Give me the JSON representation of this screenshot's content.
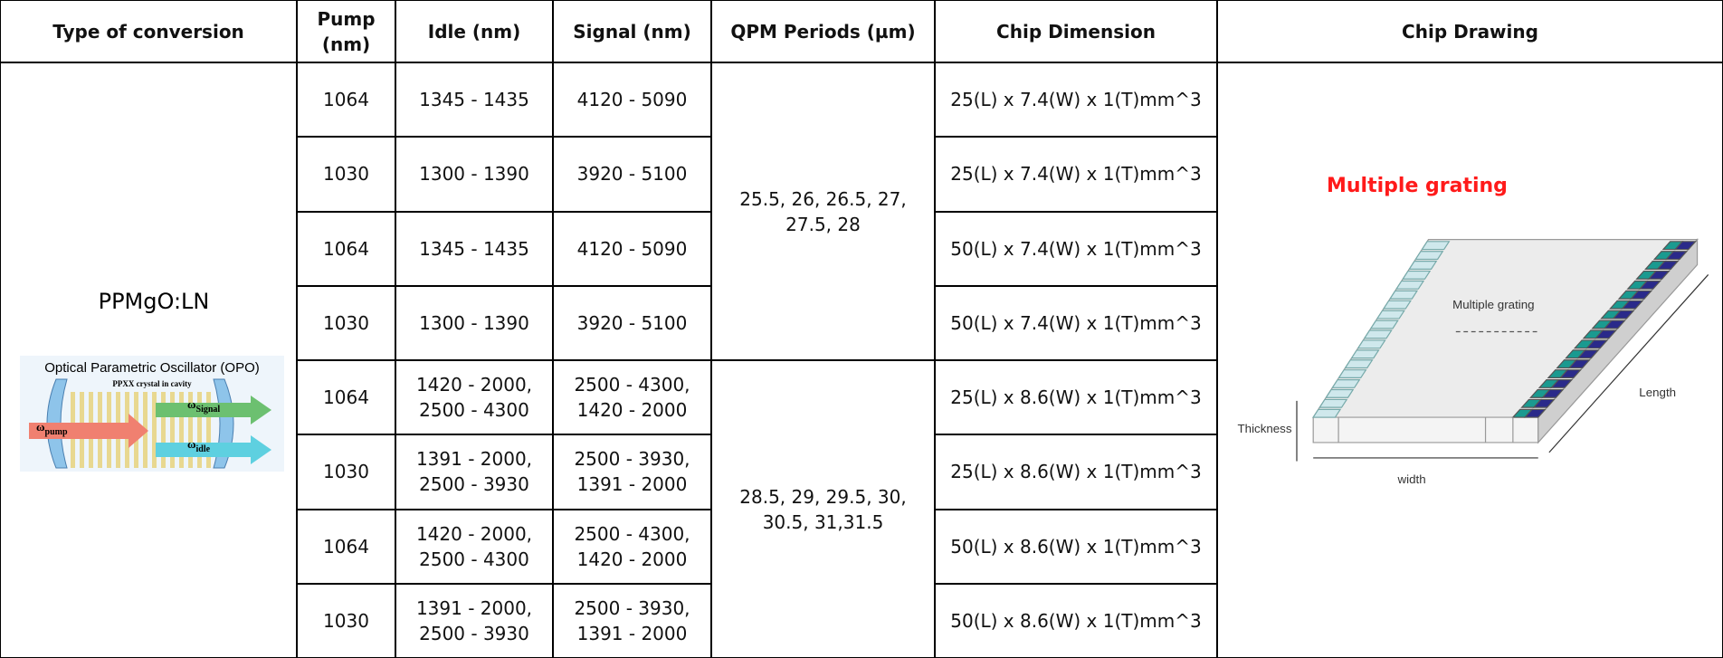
{
  "header": {
    "columns": [
      "Type of conversion",
      "Pump (nm)",
      "Idle (nm)",
      "Signal (nm)",
      "QPM Periods (µm)",
      "Chip Dimension",
      "Chip Drawing"
    ]
  },
  "table": {
    "conversion_type": "PPMgO:LN",
    "qpm_periods": [
      "25.5, 26, 26.5, 27, 27.5, 28",
      "28.5, 29, 29.5, 30, 30.5, 31,31.5"
    ],
    "rows": [
      [
        1064,
        "1345 - 1435",
        "4120 - 5090",
        "25(L) x 7.4(W) x 1(T)mm^3"
      ],
      [
        1030,
        "1300 - 1390",
        "3920 - 5100",
        "25(L) x 7.4(W) x 1(T)mm^3"
      ],
      [
        1064,
        "1345 - 1435",
        "4120 - 5090",
        "50(L) x 7.4(W) x 1(T)mm^3"
      ],
      [
        1030,
        "1300 - 1390",
        "3920 - 5100",
        "50(L) x 7.4(W) x 1(T)mm^3"
      ],
      [
        1064,
        "1420 - 2000, 2500 - 4300",
        "2500 - 4300, 1420 - 2000",
        "25(L) x 8.6(W) x 1(T)mm^3"
      ],
      [
        1030,
        "1391 - 2000, 2500 - 3930",
        "2500 - 3930, 1391 - 2000",
        "25(L) x 8.6(W) x 1(T)mm^3"
      ],
      [
        1064,
        "1420 - 2000, 2500 - 4300",
        "2500 - 4300, 1420 - 2000",
        "50(L) x 8.6(W) x 1(T)mm^3"
      ],
      [
        1030,
        "1391 - 2000, 2500 - 3930",
        "2500 - 3930, 1391 - 2000",
        "50(L) x 8.6(W) x 1(T)mm^3"
      ]
    ]
  },
  "opo_diagram": {
    "title": "Optical Parametric Oscillator (OPO)",
    "crystal": "PPXX crystal in cavity",
    "symbol": "ω",
    "pump": "pump",
    "signal": "Signal",
    "idle": "idle"
  },
  "chip_drawing": {
    "caption": "Multiple grating",
    "grating_label": "Multiple grating",
    "length": "Length",
    "thickness": "Thickness",
    "width": "width"
  }
}
